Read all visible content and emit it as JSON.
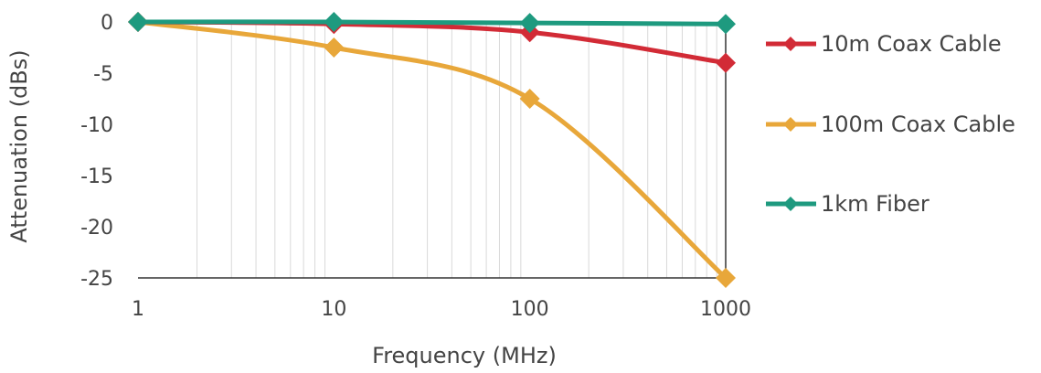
{
  "chart_data": {
    "type": "line",
    "xscale": "log",
    "x": [
      1,
      10,
      100,
      1000
    ],
    "xticks": [
      "1",
      "10",
      "100",
      "1000"
    ],
    "xlim": [
      1,
      1000
    ],
    "ylim": [
      -25,
      0
    ],
    "yticks": [
      "0",
      "-5",
      "-10",
      "-15",
      "-20",
      "-25"
    ],
    "xlabel": "Frequency (MHz)",
    "ylabel": "Attenuation (dBs)",
    "grid": "vertical log minor gridlines",
    "legend": "right",
    "series": [
      {
        "name": "10m Coax Cable",
        "color": "#D22B36",
        "values": [
          0,
          -0.2,
          -1,
          -4
        ]
      },
      {
        "name": "100m Coax Cable",
        "color": "#E8A73A",
        "values": [
          0,
          -2.5,
          -7.5,
          -25
        ]
      },
      {
        "name": "1km Fiber",
        "color": "#1E9A7F",
        "values": [
          0,
          0,
          -0.1,
          -0.2
        ]
      }
    ]
  }
}
